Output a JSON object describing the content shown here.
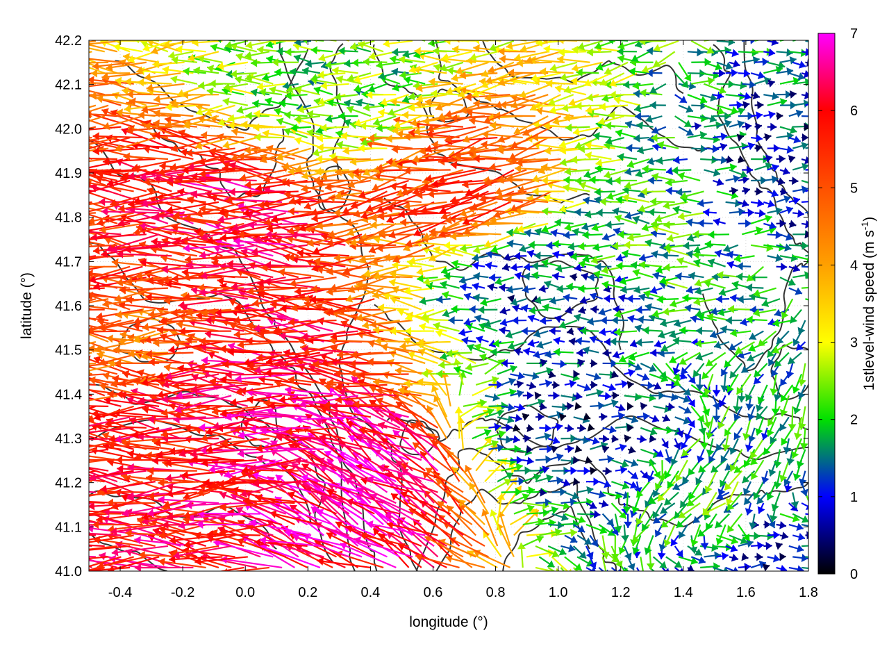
{
  "chart_data": {
    "type": "quiver",
    "description_free": true,
    "xlabel": "longitude (°)",
    "ylabel": "latitude (°)",
    "xlim": [
      -0.5,
      1.8
    ],
    "ylim": [
      41.0,
      42.2
    ],
    "xticks": [
      "-0.4",
      "-0.2",
      "0.0",
      "0.2",
      "0.4",
      "0.6",
      "0.8",
      "1.0",
      "1.2",
      "1.4",
      "1.6",
      "1.8"
    ],
    "xtick_values": [
      -0.4,
      -0.2,
      0.0,
      0.2,
      0.4,
      0.6,
      0.8,
      1.0,
      1.2,
      1.4,
      1.6,
      1.8
    ],
    "yticks": [
      "41.0",
      "41.1",
      "41.2",
      "41.3",
      "41.4",
      "41.5",
      "41.6",
      "41.7",
      "41.8",
      "41.9",
      "42.0",
      "42.1",
      "42.2"
    ],
    "ytick_values": [
      41.0,
      41.1,
      41.2,
      41.3,
      41.4,
      41.5,
      41.6,
      41.7,
      41.8,
      41.9,
      42.0,
      42.1,
      42.2
    ],
    "colorbar": {
      "label_main": "1stlevel-wind speed (m s",
      "label_sup": "-1",
      "label_end": ")",
      "ticks": [
        "0",
        "1",
        "2",
        "3",
        "4",
        "5",
        "6",
        "7"
      ],
      "tick_values": [
        0,
        1,
        2,
        3,
        4,
        5,
        6,
        7
      ],
      "range": [
        0,
        7
      ],
      "stops": [
        {
          "v": 0,
          "color": "#000000"
        },
        {
          "v": 1,
          "color": "#0000ff"
        },
        {
          "v": 2,
          "color": "#00e000"
        },
        {
          "v": 3,
          "color": "#ffff00"
        },
        {
          "v": 4,
          "color": "#ffa000"
        },
        {
          "v": 5,
          "color": "#ff5000"
        },
        {
          "v": 6,
          "color": "#ff0000"
        },
        {
          "v": 7,
          "color": "#ff00ff"
        }
      ]
    },
    "grid": true,
    "wind_field": {
      "dominant_direction": "westward",
      "samples": [
        {
          "lon": -0.45,
          "lat": 41.65,
          "u": -1.0,
          "v": 0.05,
          "speed": 5.5
        },
        {
          "lon": -0.3,
          "lat": 41.55,
          "u": -1.0,
          "v": 0.03,
          "speed": 4.6
        },
        {
          "lon": -0.15,
          "lat": 41.28,
          "u": -1.0,
          "v": 0.02,
          "speed": 5.8
        },
        {
          "lon": 0.05,
          "lat": 41.27,
          "u": -1.0,
          "v": 0.0,
          "speed": 6.2
        },
        {
          "lon": 0.1,
          "lat": 41.47,
          "u": -1.0,
          "v": 0.1,
          "speed": 6.0
        },
        {
          "lon": 0.0,
          "lat": 41.79,
          "u": -1.0,
          "v": 0.05,
          "speed": 6.1
        },
        {
          "lon": 0.4,
          "lat": 41.2,
          "u": -0.8,
          "v": 0.5,
          "speed": 6.8
        },
        {
          "lon": 0.75,
          "lat": 41.87,
          "u": -1.0,
          "v": -0.2,
          "speed": 5.2
        },
        {
          "lon": 0.95,
          "lat": 41.65,
          "u": -1.0,
          "v": 0.0,
          "speed": 1.1
        },
        {
          "lon": 1.02,
          "lat": 41.31,
          "u": 1.0,
          "v": 0.0,
          "speed": 0.8
        },
        {
          "lon": 1.6,
          "lat": 41.05,
          "u": 1.0,
          "v": 0.0,
          "speed": 1.0
        },
        {
          "lon": 1.5,
          "lat": 41.15,
          "u": -0.6,
          "v": -0.6,
          "speed": 2.0
        },
        {
          "lon": 1.3,
          "lat": 41.8,
          "u": -1.0,
          "v": 0.0,
          "speed": 2.0
        },
        {
          "lon": 1.7,
          "lat": 41.9,
          "u": 1.0,
          "v": 0.0,
          "speed": 1.0
        },
        {
          "lon": 0.3,
          "lat": 42.1,
          "u": -1.0,
          "v": 0.0,
          "speed": 2.2
        }
      ]
    },
    "contours": {
      "color": "#333333"
    }
  }
}
